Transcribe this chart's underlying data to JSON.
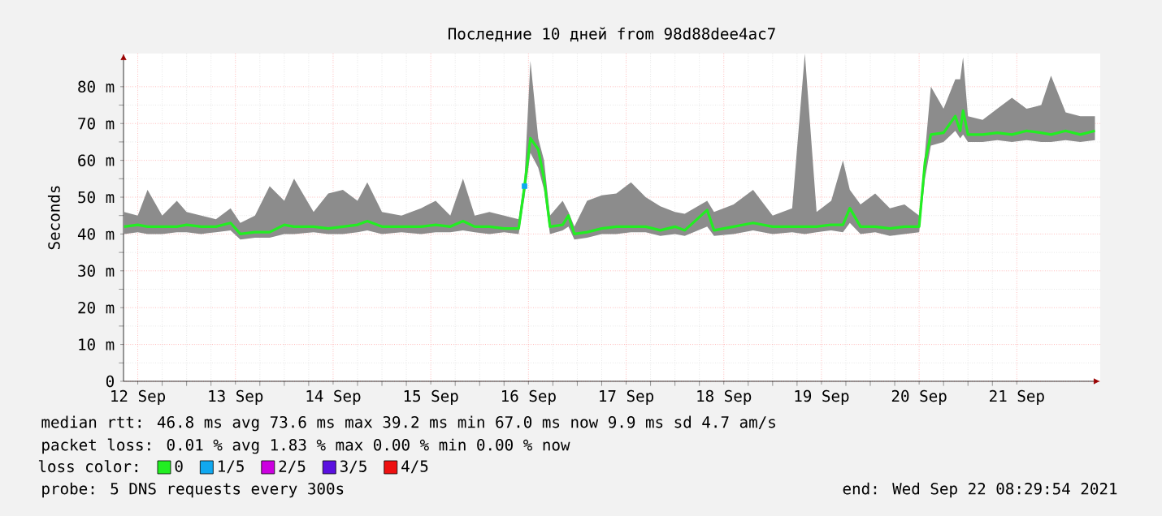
{
  "chart_data": {
    "type": "line",
    "title": "Последние 10 дней from 98d88dee4ac7",
    "ylabel": "Seconds",
    "xlim": [
      "2021-09-12T08:30",
      "2021-09-22T08:30"
    ],
    "xticks": [
      {
        "value": "2021-09-12T12:00",
        "label": "12 Sep"
      },
      {
        "value": "2021-09-13T12:00",
        "label": "13 Sep"
      },
      {
        "value": "2021-09-14T12:00",
        "label": "14 Sep"
      },
      {
        "value": "2021-09-15T12:00",
        "label": "15 Sep"
      },
      {
        "value": "2021-09-16T12:00",
        "label": "16 Sep"
      },
      {
        "value": "2021-09-17T12:00",
        "label": "17 Sep"
      },
      {
        "value": "2021-09-18T12:00",
        "label": "18 Sep"
      },
      {
        "value": "2021-09-19T12:00",
        "label": "19 Sep"
      },
      {
        "value": "2021-09-20T12:00",
        "label": "20 Sep"
      },
      {
        "value": "2021-09-21T12:00",
        "label": "21 Sep"
      }
    ],
    "ylim": [
      0,
      89
    ],
    "yticks": [
      0,
      {
        "value": 10,
        "label": "10 m"
      },
      {
        "value": 20,
        "label": "20 m"
      },
      {
        "value": 30,
        "label": "30 m"
      },
      {
        "value": 40,
        "label": "40 m"
      },
      {
        "value": 50,
        "label": "50 m"
      },
      {
        "value": 60,
        "label": "60 m"
      },
      {
        "value": 70,
        "label": "70 m"
      },
      {
        "value": 80,
        "label": "80 m"
      }
    ],
    "grid": true,
    "legend": "bottom",
    "legend_title": "loss color:",
    "x": [
      "2021-09-12T08:38",
      "2021-09-12T12:00",
      "2021-09-12T14:24",
      "2021-09-12T18:00",
      "2021-09-12T21:36",
      "2021-09-13T00:00",
      "2021-09-13T03:36",
      "2021-09-13T07:12",
      "2021-09-13T10:48",
      "2021-09-13T13:12",
      "2021-09-13T16:48",
      "2021-09-13T20:24",
      "2021-09-14T00:00",
      "2021-09-14T02:24",
      "2021-09-14T07:12",
      "2021-09-14T10:48",
      "2021-09-14T14:24",
      "2021-09-14T18:00",
      "2021-09-14T20:24",
      "2021-09-15T00:00",
      "2021-09-15T04:48",
      "2021-09-15T09:36",
      "2021-09-15T13:12",
      "2021-09-15T16:48",
      "2021-09-15T19:55",
      "2021-09-15T22:48",
      "2021-09-16T02:24",
      "2021-09-16T06:00",
      "2021-09-16T09:36",
      "2021-09-16T11:02",
      "2021-09-16T12:29",
      "2021-09-16T14:24",
      "2021-09-16T15:50",
      "2021-09-16T17:17",
      "2021-09-16T20:24",
      "2021-09-16T21:50",
      "2021-09-16T23:17",
      "2021-09-17T02:24",
      "2021-09-17T06:00",
      "2021-09-17T09:36",
      "2021-09-17T13:12",
      "2021-09-17T16:48",
      "2021-09-17T20:24",
      "2021-09-18T00:00",
      "2021-09-18T02:24",
      "2021-09-18T07:55",
      "2021-09-18T09:36",
      "2021-09-18T14:24",
      "2021-09-18T19:12",
      "2021-09-19T00:00",
      "2021-09-19T04:48",
      "2021-09-19T07:55",
      "2021-09-19T10:48",
      "2021-09-19T14:24",
      "2021-09-19T17:17",
      "2021-09-19T18:58",
      "2021-09-19T21:36",
      "2021-09-20T01:12",
      "2021-09-20T04:48",
      "2021-09-20T08:24",
      "2021-09-20T12:00",
      "2021-09-20T13:26",
      "2021-09-20T14:53",
      "2021-09-20T18:00",
      "2021-09-20T20:53",
      "2021-09-20T22:05",
      "2021-09-20T22:48",
      "2021-09-21T00:00",
      "2021-09-21T03:36",
      "2021-09-21T07:12",
      "2021-09-21T10:48",
      "2021-09-21T14:24",
      "2021-09-21T18:00",
      "2021-09-21T20:24",
      "2021-09-22T00:00",
      "2021-09-22T03:36",
      "2021-09-22T07:12"
    ],
    "series": [
      {
        "name": "0",
        "color": "#22ee22",
        "values": [
          42,
          42.5,
          42,
          42,
          42,
          42.5,
          42,
          42,
          43,
          40,
          40.5,
          40.5,
          42.5,
          42,
          42,
          41.5,
          42,
          42.5,
          43.5,
          42,
          42,
          42,
          42.5,
          42,
          43.5,
          42,
          42,
          41.5,
          41.5,
          53,
          66,
          63,
          55,
          42,
          42.5,
          45,
          40,
          40.5,
          41.5,
          42,
          42,
          42,
          41,
          42,
          41,
          46.5,
          41,
          42,
          43,
          42,
          42,
          42,
          42,
          42.5,
          42.5,
          47,
          42,
          42,
          41.5,
          42,
          42,
          59.5,
          67,
          67.5,
          72,
          68,
          73.5,
          67,
          67,
          67.5,
          67,
          68,
          67.5,
          67,
          68,
          67,
          68
        ],
        "lower": [
          40,
          40.5,
          40,
          40,
          40.5,
          40.5,
          40,
          40.5,
          41,
          38.5,
          39,
          39,
          40,
          40,
          40.5,
          40,
          40,
          40.5,
          41,
          40,
          40.5,
          40,
          40.5,
          40.5,
          41,
          40.5,
          40,
          40.5,
          40,
          50,
          62,
          58,
          52,
          40,
          41,
          42,
          38.5,
          39,
          40,
          40,
          40.5,
          40.5,
          39.5,
          40,
          39.5,
          42,
          39.5,
          40,
          41,
          40,
          40.5,
          40,
          40.5,
          41,
          40.5,
          43,
          40,
          40.5,
          39.5,
          40,
          40.5,
          55,
          64,
          65,
          68,
          66,
          67,
          65,
          65,
          65.5,
          65,
          65.5,
          65,
          65,
          65.5,
          65,
          65.5
        ],
        "upper": [
          46,
          45,
          52,
          45,
          49,
          46,
          45,
          44,
          47,
          43,
          45,
          53,
          49,
          55,
          46,
          51,
          52,
          49,
          54,
          46,
          45,
          47,
          49,
          45,
          55,
          45,
          46,
          45,
          44,
          55,
          87,
          66,
          60,
          45,
          49,
          46,
          42,
          49,
          50.5,
          51,
          54,
          50,
          47.5,
          46,
          45.5,
          49,
          46,
          48,
          52,
          45,
          47,
          89,
          46,
          49,
          60,
          52,
          48,
          51,
          47,
          48,
          45,
          62,
          80,
          74,
          82,
          82,
          88,
          72,
          71,
          74,
          77,
          74,
          75,
          83,
          73,
          72,
          72
        ]
      },
      {
        "name": "1/5",
        "type": "scatter",
        "color": "#10a8f0",
        "x": [
          "2021-09-16T11:02"
        ],
        "values": [
          53
        ]
      },
      {
        "name": "2/5",
        "type": "scatter",
        "color": "#cc00e0",
        "values": [
          null,
          null,
          null,
          null,
          null,
          null,
          null,
          null,
          null,
          null,
          null,
          null,
          null,
          null,
          null,
          null,
          null,
          null,
          null,
          null,
          null,
          null,
          null,
          null,
          null,
          null,
          null,
          null,
          null,
          null,
          null,
          null,
          null,
          null,
          null,
          null,
          null,
          null,
          null,
          null,
          null,
          null,
          null,
          null,
          null,
          null,
          null,
          null,
          null,
          null,
          null,
          null,
          null,
          null,
          null,
          null,
          null,
          null,
          null,
          null,
          null,
          null,
          null,
          null,
          null,
          null,
          null,
          null,
          null,
          null,
          null,
          null,
          null,
          null,
          null,
          null,
          null
        ]
      },
      {
        "name": "3/5",
        "type": "scatter",
        "color": "#5a10e0",
        "values": [
          null,
          null,
          null,
          null,
          null,
          null,
          null,
          null,
          null,
          null,
          null,
          null,
          null,
          null,
          null,
          null,
          null,
          null,
          null,
          null,
          null,
          null,
          null,
          null,
          null,
          null,
          null,
          null,
          null,
          null,
          null,
          null,
          null,
          null,
          null,
          null,
          null,
          null,
          null,
          null,
          null,
          null,
          null,
          null,
          null,
          null,
          null,
          null,
          null,
          null,
          null,
          null,
          null,
          null,
          null,
          null,
          null,
          null,
          null,
          null,
          null,
          null,
          null,
          null,
          null,
          null,
          null,
          null,
          null,
          null,
          null,
          null,
          null,
          null,
          null,
          null,
          null
        ]
      },
      {
        "name": "4/5",
        "type": "scatter",
        "color": "#ee1010",
        "values": [
          null,
          null,
          null,
          null,
          null,
          null,
          null,
          null,
          null,
          null,
          null,
          null,
          null,
          null,
          null,
          null,
          null,
          null,
          null,
          null,
          null,
          null,
          null,
          null,
          null,
          null,
          null,
          null,
          null,
          null,
          null,
          null,
          null,
          null,
          null,
          null,
          null,
          null,
          null,
          null,
          null,
          null,
          null,
          null,
          null,
          null,
          null,
          null,
          null,
          null,
          null,
          null,
          null,
          null,
          null,
          null,
          null,
          null,
          null,
          null,
          null,
          null,
          null,
          null,
          null,
          null,
          null,
          null,
          null,
          null,
          null,
          null,
          null,
          null,
          null,
          null,
          null
        ]
      }
    ],
    "annotations": [
      "median rtt:  46.8 ms avg  73.6 ms max  39.2 ms min  67.0 ms now  9.9 ms sd  4.7   am/s",
      "packet loss: 0.01 % avg  1.83 % max  0.00 % min  0.00 % now",
      "probe:       5 DNS requests every 300s",
      "end: Wed Sep 22 08:29:54 2021"
    ]
  }
}
